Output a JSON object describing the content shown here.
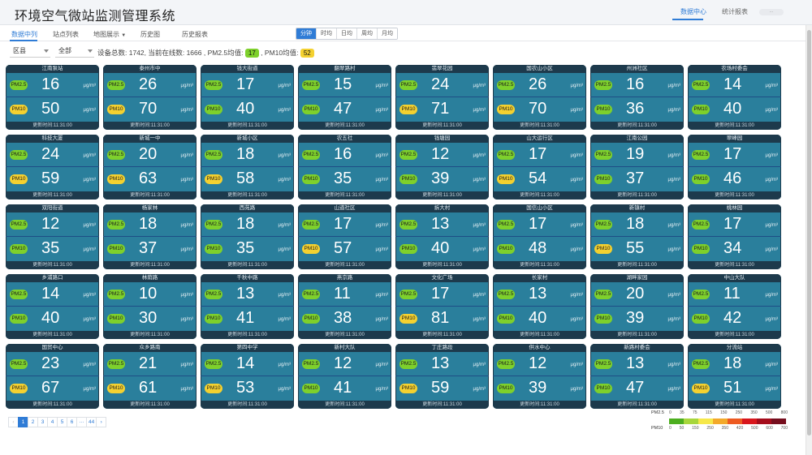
{
  "app": {
    "title": "环境空气微站监测管理系统",
    "nav": [
      "数据中心",
      "统计报表"
    ],
    "active_nav": 0
  },
  "toolbar": {
    "tabs": [
      "数据中列",
      "站点列表",
      "地图展示",
      "历史图",
      "历史报表"
    ],
    "active_tab": 0,
    "segments": [
      "分钟",
      "时均",
      "日均",
      "周均",
      "月均"
    ],
    "active_segment": 0
  },
  "filter": {
    "region_select": "区县",
    "status_select": "全部",
    "stats_text": "设备总数: 1742, 当前在线数: 1666 , PM2.5均值:",
    "pm25_avg": "17",
    "pm10_label": ", PM10均值:",
    "pm10_avg": "52"
  },
  "labels": {
    "pm25": "PM2.5",
    "pm10": "PM10",
    "unit": "μg/m³",
    "update_prefix": "更新时间:",
    "update_time": "11:31:00"
  },
  "stations": [
    {
      "name": "江南泵站",
      "pm25": 16,
      "pm10": 50,
      "pm10_level": "yellow"
    },
    {
      "name": "泰州市中",
      "pm25": 26,
      "pm10": 70,
      "pm10_level": "yellow"
    },
    {
      "name": "钱大街道",
      "pm25": 17,
      "pm10": 40,
      "pm10_level": "green"
    },
    {
      "name": "翻翠路村",
      "pm25": 15,
      "pm10": 47,
      "pm10_level": "green"
    },
    {
      "name": "翡翠花园",
      "pm25": 24,
      "pm10": 71,
      "pm10_level": "yellow"
    },
    {
      "name": "国农山小区",
      "pm25": 26,
      "pm10": 70,
      "pm10_level": "yellow"
    },
    {
      "name": "州洲社区",
      "pm25": 16,
      "pm10": 36,
      "pm10_level": "green"
    },
    {
      "name": "农场村委会",
      "pm25": 14,
      "pm10": 40,
      "pm10_level": "green"
    },
    {
      "name": "科技大厦",
      "pm25": 24,
      "pm10": 59,
      "pm10_level": "yellow"
    },
    {
      "name": "新城一中",
      "pm25": 20,
      "pm10": 63,
      "pm10_level": "yellow"
    },
    {
      "name": "新城小区",
      "pm25": 18,
      "pm10": 58,
      "pm10_level": "yellow"
    },
    {
      "name": "农五社",
      "pm25": 16,
      "pm10": 35,
      "pm10_level": "green"
    },
    {
      "name": "钱塘园",
      "pm25": 12,
      "pm10": 39,
      "pm10_level": "green"
    },
    {
      "name": "山大运行区",
      "pm25": 17,
      "pm10": 54,
      "pm10_level": "yellow"
    },
    {
      "name": "江南公园",
      "pm25": 19,
      "pm10": 37,
      "pm10_level": "green"
    },
    {
      "name": "翠峰园",
      "pm25": 17,
      "pm10": 46,
      "pm10_level": "green"
    },
    {
      "name": "双阳街道",
      "pm25": 12,
      "pm10": 35,
      "pm10_level": "green"
    },
    {
      "name": "杨家林",
      "pm25": 18,
      "pm10": 37,
      "pm10_level": "green"
    },
    {
      "name": "西苑路",
      "pm25": 18,
      "pm10": 35,
      "pm10_level": "green"
    },
    {
      "name": "山道社区",
      "pm25": 17,
      "pm10": 57,
      "pm10_level": "yellow"
    },
    {
      "name": "拆大村",
      "pm25": 13,
      "pm10": 40,
      "pm10_level": "green"
    },
    {
      "name": "国信山小区",
      "pm25": 17,
      "pm10": 48,
      "pm10_level": "green"
    },
    {
      "name": "新镇村",
      "pm25": 18,
      "pm10": 55,
      "pm10_level": "yellow"
    },
    {
      "name": "桃林园",
      "pm25": 17,
      "pm10": 34,
      "pm10_level": "green"
    },
    {
      "name": "乡浦路口",
      "pm25": 14,
      "pm10": 40,
      "pm10_level": "green"
    },
    {
      "name": "林荫路",
      "pm25": 10,
      "pm10": 30,
      "pm10_level": "green"
    },
    {
      "name": "千秋中路",
      "pm25": 13,
      "pm10": 41,
      "pm10_level": "green"
    },
    {
      "name": "燕京路",
      "pm25": 11,
      "pm10": 38,
      "pm10_level": "green"
    },
    {
      "name": "文化广场",
      "pm25": 17,
      "pm10": 81,
      "pm10_level": "yellow"
    },
    {
      "name": "长家村",
      "pm25": 13,
      "pm10": 40,
      "pm10_level": "green"
    },
    {
      "name": "湖畔家园",
      "pm25": 20,
      "pm10": 39,
      "pm10_level": "green"
    },
    {
      "name": "中山大队",
      "pm25": 11,
      "pm10": 42,
      "pm10_level": "green"
    },
    {
      "name": "国贸中心",
      "pm25": 23,
      "pm10": 67,
      "pm10_level": "yellow"
    },
    {
      "name": "众乡路南",
      "pm25": 21,
      "pm10": 61,
      "pm10_level": "yellow"
    },
    {
      "name": "第四中学",
      "pm25": 14,
      "pm10": 53,
      "pm10_level": "yellow"
    },
    {
      "name": "新村大队",
      "pm25": 12,
      "pm10": 41,
      "pm10_level": "green"
    },
    {
      "name": "丁庄路段",
      "pm25": 13,
      "pm10": 59,
      "pm10_level": "yellow"
    },
    {
      "name": "供水中心",
      "pm25": 12,
      "pm10": 39,
      "pm10_level": "green"
    },
    {
      "name": "新路村委会",
      "pm25": 13,
      "pm10": 47,
      "pm10_level": "green"
    },
    {
      "name": "分流站",
      "pm25": 18,
      "pm10": 51,
      "pm10_level": "yellow"
    }
  ],
  "pager": {
    "prev": "‹",
    "pages": [
      "1",
      "2",
      "3",
      "4",
      "5",
      "6",
      "···",
      "44"
    ],
    "current": "1",
    "next": "›"
  },
  "legend": {
    "pm25_label": "PM2.5",
    "pm10_label": "PM10",
    "colors": [
      "#4cae1f",
      "#a7d63c",
      "#f6e84a",
      "#f3a92a",
      "#ed5a21",
      "#d8161c",
      "#a40c1b",
      "#750d1d"
    ],
    "pm25_ticks": [
      "0",
      "35",
      "75",
      "115",
      "150",
      "250",
      "350",
      "500",
      "800"
    ],
    "pm10_ticks": [
      "0",
      "50",
      "150",
      "250",
      "350",
      "420",
      "500",
      "600",
      "700"
    ]
  },
  "colors": {
    "accent": "#2f7cd6",
    "card_bg": "#2a7f9c",
    "card_header": "#1d3a4c",
    "good": "#7ed02c",
    "moderate": "#f4d130"
  }
}
